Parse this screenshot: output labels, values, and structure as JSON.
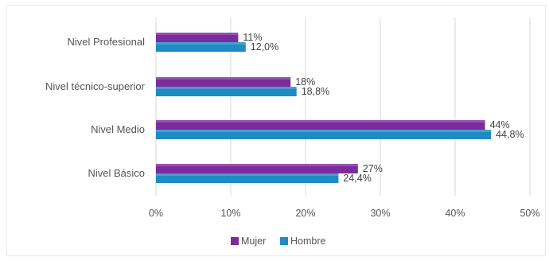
{
  "chart_data": {
    "type": "bar",
    "orientation": "horizontal",
    "title": "",
    "xlabel": "",
    "ylabel": "",
    "xlim": [
      0,
      50
    ],
    "x_ticks": [
      "0%",
      "10%",
      "20%",
      "30%",
      "40%",
      "50%"
    ],
    "grid": "vertical",
    "legend_position": "bottom",
    "categories": [
      "Nivel Profesional",
      "Nivel técnico-superior",
      "Nivel Medio",
      "Nivel Básico"
    ],
    "series": [
      {
        "name": "Mujer",
        "color": "#7d2a9c",
        "values": [
          11,
          18,
          44,
          27
        ],
        "labels": [
          "11%",
          "18%",
          "44%",
          "27%"
        ]
      },
      {
        "name": "Hombre",
        "color": "#1e8bc3",
        "values": [
          12.0,
          18.8,
          44.8,
          24.4
        ],
        "labels": [
          "12,0%",
          "18,8%",
          "44,8%",
          "24,4%"
        ]
      }
    ]
  }
}
